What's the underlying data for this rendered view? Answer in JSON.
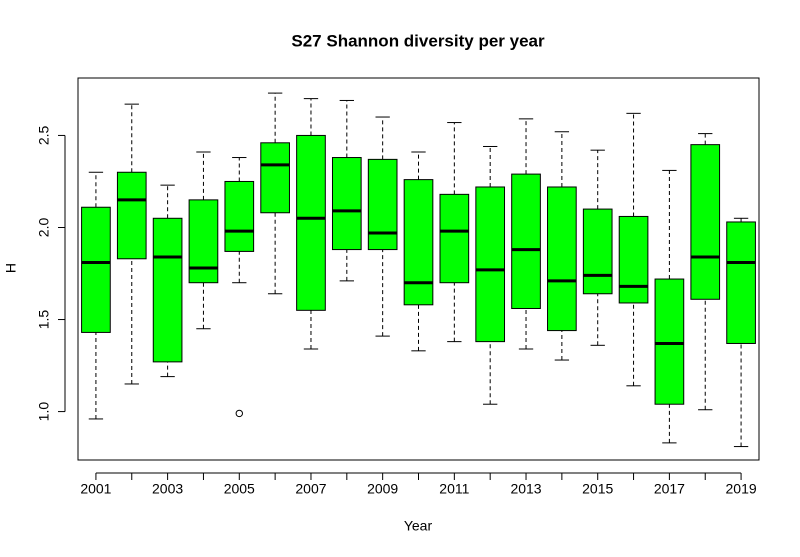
{
  "chart_data": {
    "type": "boxplot",
    "title": "S27 Shannon diversity per year",
    "x_label": "Year",
    "y_label": "H",
    "categories": [
      "2001",
      null,
      "2003",
      null,
      "2005",
      null,
      "2007",
      null,
      "2009",
      null,
      "2011",
      null,
      "2013",
      null,
      "2015",
      null,
      "2017",
      null,
      "2019"
    ],
    "color": "#00ff00",
    "min": [
      0.96,
      1.15,
      1.19,
      1.45,
      1.7,
      1.64,
      1.34,
      1.71,
      1.41,
      1.33,
      1.38,
      1.04,
      1.34,
      1.28,
      1.36,
      1.14,
      0.83,
      1.01,
      0.81
    ],
    "q1": [
      1.43,
      1.83,
      1.27,
      1.7,
      1.87,
      2.08,
      1.55,
      1.88,
      1.88,
      1.58,
      1.7,
      1.38,
      1.56,
      1.44,
      1.64,
      1.59,
      1.04,
      1.61,
      1.37
    ],
    "median": [
      1.81,
      2.15,
      1.84,
      1.78,
      1.98,
      2.34,
      2.05,
      2.09,
      1.97,
      1.7,
      1.98,
      1.77,
      1.88,
      1.71,
      1.74,
      1.68,
      1.37,
      1.84,
      1.81
    ],
    "q3": [
      2.11,
      2.3,
      2.05,
      2.15,
      2.25,
      2.46,
      2.5,
      2.38,
      2.37,
      2.26,
      2.18,
      2.22,
      2.29,
      2.22,
      2.1,
      2.06,
      1.72,
      2.45,
      2.03
    ],
    "max": [
      2.3,
      2.67,
      2.23,
      2.41,
      2.38,
      2.73,
      2.7,
      2.69,
      2.6,
      2.41,
      2.57,
      2.44,
      2.59,
      2.52,
      2.42,
      2.62,
      2.31,
      2.51,
      2.05
    ],
    "outliers": [
      [],
      [],
      [],
      [],
      [
        0.99
      ],
      [],
      [],
      [],
      [],
      [],
      [],
      [],
      [],
      [],
      [],
      [],
      [],
      [],
      []
    ],
    "ylim": [
      0.737,
      2.812
    ],
    "yticks": [
      {
        "value": 1,
        "label": "1.0"
      },
      {
        "value": 1.5,
        "label": "1.5"
      },
      {
        "value": 2,
        "label": "2.0"
      },
      {
        "value": 2.5,
        "label": "2.5"
      }
    ]
  }
}
